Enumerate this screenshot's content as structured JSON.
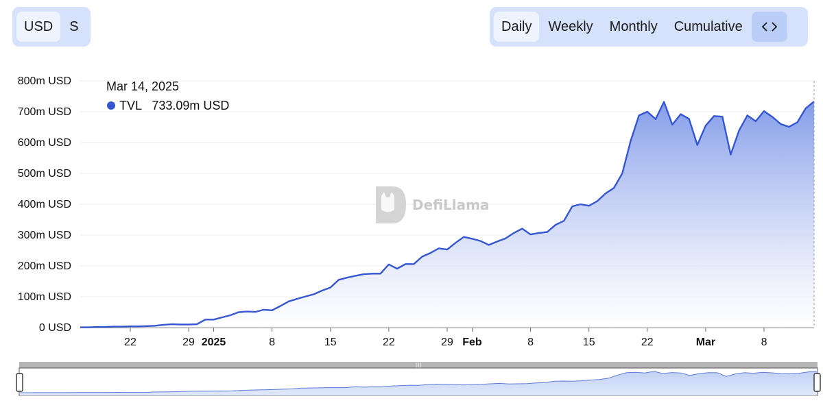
{
  "unit_toggle": {
    "items": [
      "USD",
      "S"
    ],
    "active": 0
  },
  "period_toggle": {
    "items": [
      "Daily",
      "Weekly",
      "Monthly",
      "Cumulative"
    ],
    "active": 0,
    "embed_icon": "code-icon",
    "embed_label": "<>"
  },
  "watermark": {
    "text": "DefiLlama",
    "icon": "llama-logo-icon"
  },
  "tooltip": {
    "date": "Mar 14, 2025",
    "series": "TVL",
    "value": "733.09m USD",
    "color": "#3556d1"
  },
  "colors": {
    "line": "#3556d1",
    "area_top": "#7e98e8",
    "area_bottom": "#ffffff",
    "brush": "#cfdcf7"
  },
  "chart_data": {
    "type": "area",
    "title": "",
    "xlabel": "",
    "ylabel": "",
    "ylim": [
      0,
      800
    ],
    "grid": true,
    "y_ticks": [
      {
        "v": 0,
        "label": "0 USD"
      },
      {
        "v": 100,
        "label": "100m USD"
      },
      {
        "v": 200,
        "label": "200m USD"
      },
      {
        "v": 300,
        "label": "300m USD"
      },
      {
        "v": 400,
        "label": "400m USD"
      },
      {
        "v": 500,
        "label": "500m USD"
      },
      {
        "v": 600,
        "label": "600m USD"
      },
      {
        "v": 700,
        "label": "700m USD"
      },
      {
        "v": 800,
        "label": "800m USD"
      }
    ],
    "x_ticks": [
      {
        "date": "2024-12-22",
        "label": "22",
        "bold": false
      },
      {
        "date": "2024-12-29",
        "label": "29",
        "bold": false
      },
      {
        "date": "2025-01-01",
        "label": "2025",
        "bold": true
      },
      {
        "date": "2025-01-08",
        "label": "8",
        "bold": false
      },
      {
        "date": "2025-01-15",
        "label": "15",
        "bold": false
      },
      {
        "date": "2025-01-22",
        "label": "22",
        "bold": false
      },
      {
        "date": "2025-01-29",
        "label": "29",
        "bold": false
      },
      {
        "date": "2025-02-01",
        "label": "Feb",
        "bold": true
      },
      {
        "date": "2025-02-08",
        "label": "8",
        "bold": false
      },
      {
        "date": "2025-02-15",
        "label": "15",
        "bold": false
      },
      {
        "date": "2025-02-22",
        "label": "22",
        "bold": false
      },
      {
        "date": "2025-03-01",
        "label": "Mar",
        "bold": true
      },
      {
        "date": "2025-03-08",
        "label": "8",
        "bold": false
      }
    ],
    "series": [
      {
        "name": "TVL",
        "x": [
          "2024-12-16",
          "2024-12-17",
          "2024-12-18",
          "2024-12-19",
          "2024-12-20",
          "2024-12-21",
          "2024-12-22",
          "2024-12-23",
          "2024-12-24",
          "2024-12-25",
          "2024-12-26",
          "2024-12-27",
          "2024-12-28",
          "2024-12-29",
          "2024-12-30",
          "2024-12-31",
          "2025-01-01",
          "2025-01-02",
          "2025-01-03",
          "2025-01-04",
          "2025-01-05",
          "2025-01-06",
          "2025-01-07",
          "2025-01-08",
          "2025-01-09",
          "2025-01-10",
          "2025-01-11",
          "2025-01-12",
          "2025-01-13",
          "2025-01-14",
          "2025-01-15",
          "2025-01-16",
          "2025-01-17",
          "2025-01-18",
          "2025-01-19",
          "2025-01-20",
          "2025-01-21",
          "2025-01-22",
          "2025-01-23",
          "2025-01-24",
          "2025-01-25",
          "2025-01-26",
          "2025-01-27",
          "2025-01-28",
          "2025-01-29",
          "2025-01-30",
          "2025-01-31",
          "2025-02-01",
          "2025-02-02",
          "2025-02-03",
          "2025-02-04",
          "2025-02-05",
          "2025-02-06",
          "2025-02-07",
          "2025-02-08",
          "2025-02-09",
          "2025-02-10",
          "2025-02-11",
          "2025-02-12",
          "2025-02-13",
          "2025-02-14",
          "2025-02-15",
          "2025-02-16",
          "2025-02-17",
          "2025-02-18",
          "2025-02-19",
          "2025-02-20",
          "2025-02-21",
          "2025-02-22",
          "2025-02-23",
          "2025-02-24",
          "2025-02-25",
          "2025-02-26",
          "2025-02-27",
          "2025-02-28",
          "2025-03-01",
          "2025-03-02",
          "2025-03-03",
          "2025-03-04",
          "2025-03-05",
          "2025-03-06",
          "2025-03-07",
          "2025-03-08",
          "2025-03-09",
          "2025-03-10",
          "2025-03-11",
          "2025-03-12",
          "2025-03-13",
          "2025-03-14"
        ],
        "values": [
          1,
          1,
          2,
          2,
          3,
          3,
          4,
          4,
          5,
          6,
          9,
          11,
          10,
          10,
          11,
          26,
          26,
          33,
          40,
          50,
          52,
          51,
          58,
          56,
          70,
          85,
          93,
          101,
          108,
          120,
          130,
          155,
          162,
          168,
          173,
          175,
          175,
          205,
          191,
          206,
          206,
          230,
          242,
          257,
          253,
          275,
          294,
          288,
          281,
          268,
          279,
          289,
          307,
          321,
          302,
          307,
          310,
          333,
          346,
          393,
          400,
          395,
          410,
          435,
          453,
          500,
          605,
          688,
          700,
          676,
          732,
          658,
          692,
          677,
          592,
          655,
          686,
          684,
          561,
          639,
          688,
          669,
          702,
          683,
          660,
          651,
          666,
          711,
          733
        ]
      }
    ]
  }
}
